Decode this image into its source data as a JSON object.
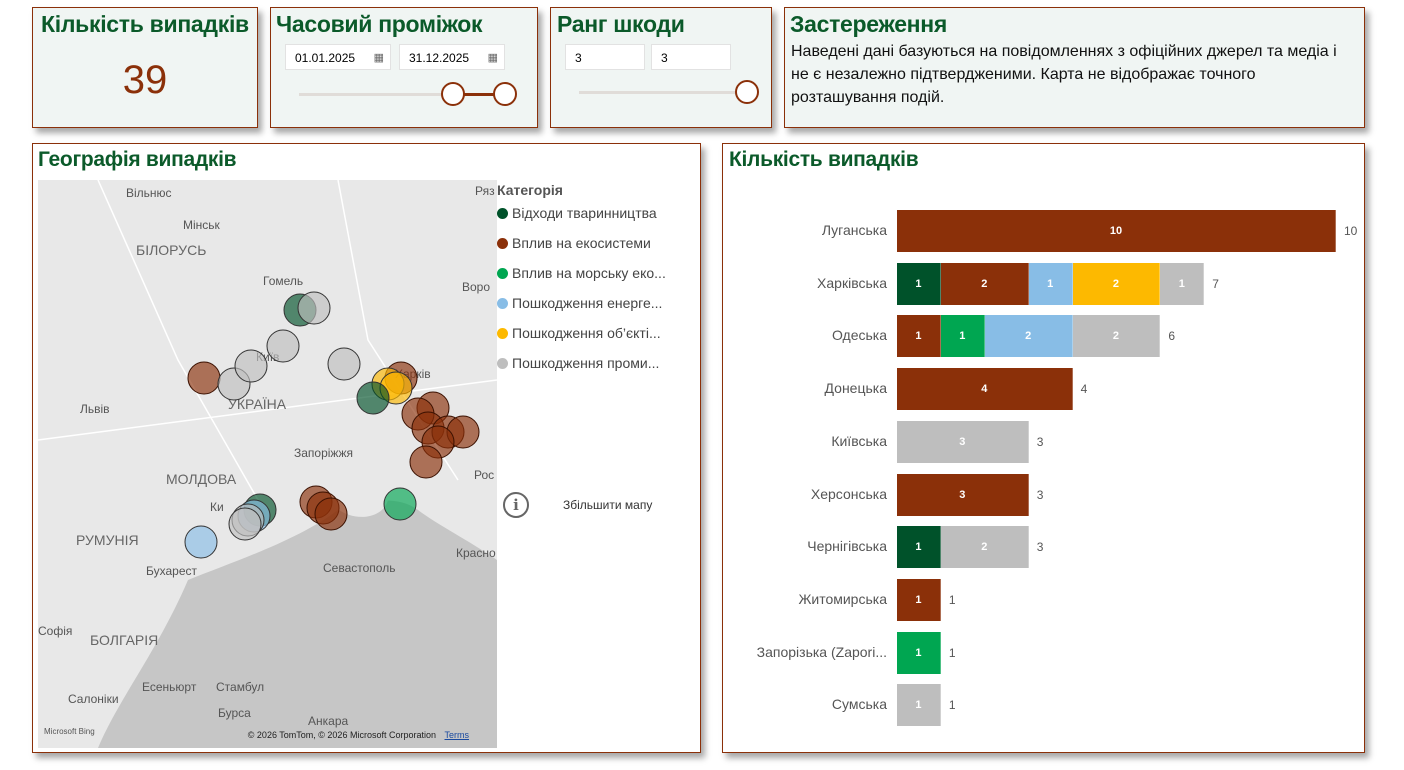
{
  "kpi": {
    "title": "Кількість випадків",
    "value": "39"
  },
  "time": {
    "title": "Часовий проміжок",
    "start": "01.01.2025",
    "end": "31.12.2025",
    "icon": "calendar-icon"
  },
  "rank": {
    "title": "Ранг шкоди",
    "min": "3",
    "max": "3"
  },
  "disclaimer": {
    "title": "Застереження",
    "text": "Наведені дані базуються на повідомленнях з офіційних джерел та медіа і не є незалежно підтвердженими. Карта не відображає точного розташування подій."
  },
  "map": {
    "title": "Географія випадків",
    "legend_title": "Категорія",
    "categories": [
      {
        "label": "Відходи тваринництва",
        "color": "#00522a"
      },
      {
        "label": "Вплив на екосистеми",
        "color": "#8b3009"
      },
      {
        "label": "Вплив на морську еко...",
        "color": "#00a651"
      },
      {
        "label": "Пошкодження енерге...",
        "color": "#88bde6"
      },
      {
        "label": "Пошкодження об’єкті...",
        "color": "#fdb900"
      },
      {
        "label": "Пошкодження проми...",
        "color": "#bebebe"
      }
    ],
    "labels": [
      "Вільнюс",
      "Мінськ",
      "БІЛОРУСЬ",
      "Гомель",
      "Київ",
      "Львів",
      "УКРАЇНА",
      "Харків",
      "Воро",
      "Запоріжжя",
      "МОЛДОВА",
      "Ки",
      "РУМУНІЯ",
      "Бухарест",
      "Севастополь",
      "Красно",
      "Рос",
      "Софія",
      "БОЛГАРІЯ",
      "Есеньюрт",
      "Стамбул",
      "Салоніки",
      "Бурса",
      "Анкара",
      "Ряз"
    ],
    "zoom_label": "Збільшити мапу",
    "attribution": "© 2026 TomTom, © 2026 Microsoft Corporation",
    "terms": "Terms",
    "bing": "Microsoft Bing"
  },
  "chart_data": {
    "type": "bar",
    "orientation": "horizontal",
    "stacked": true,
    "title": "Кількість випадків",
    "categories": [
      "Луганська",
      "Харківська",
      "Одеська",
      "Донецька",
      "Київська",
      "Херсонська",
      "Чернігівська",
      "Житомирська",
      "Запорізька (Zapori...",
      "Сумська"
    ],
    "series": [
      {
        "name": "Відходи тваринництва",
        "color": "#00522a",
        "values": [
          0,
          1,
          0,
          0,
          0,
          0,
          1,
          0,
          0,
          0
        ]
      },
      {
        "name": "Вплив на екосистеми",
        "color": "#8b3009",
        "values": [
          10,
          2,
          1,
          4,
          0,
          3,
          0,
          1,
          0,
          0
        ]
      },
      {
        "name": "Вплив на морську еко...",
        "color": "#00a651",
        "values": [
          0,
          0,
          1,
          0,
          0,
          0,
          0,
          0,
          1,
          0
        ]
      },
      {
        "name": "Пошкодження енерге...",
        "color": "#88bde6",
        "values": [
          0,
          1,
          2,
          0,
          0,
          0,
          0,
          0,
          0,
          0
        ]
      },
      {
        "name": "Пошкодження об’єкті...",
        "color": "#fdb900",
        "values": [
          0,
          2,
          0,
          0,
          0,
          0,
          0,
          0,
          0,
          0
        ]
      },
      {
        "name": "Пошкодження проми...",
        "color": "#bebebe",
        "values": [
          0,
          1,
          2,
          0,
          3,
          0,
          2,
          0,
          0,
          1
        ]
      }
    ],
    "totals": [
      10,
      7,
      6,
      4,
      3,
      3,
      3,
      1,
      1,
      1
    ],
    "xlim": [
      0,
      10
    ]
  }
}
